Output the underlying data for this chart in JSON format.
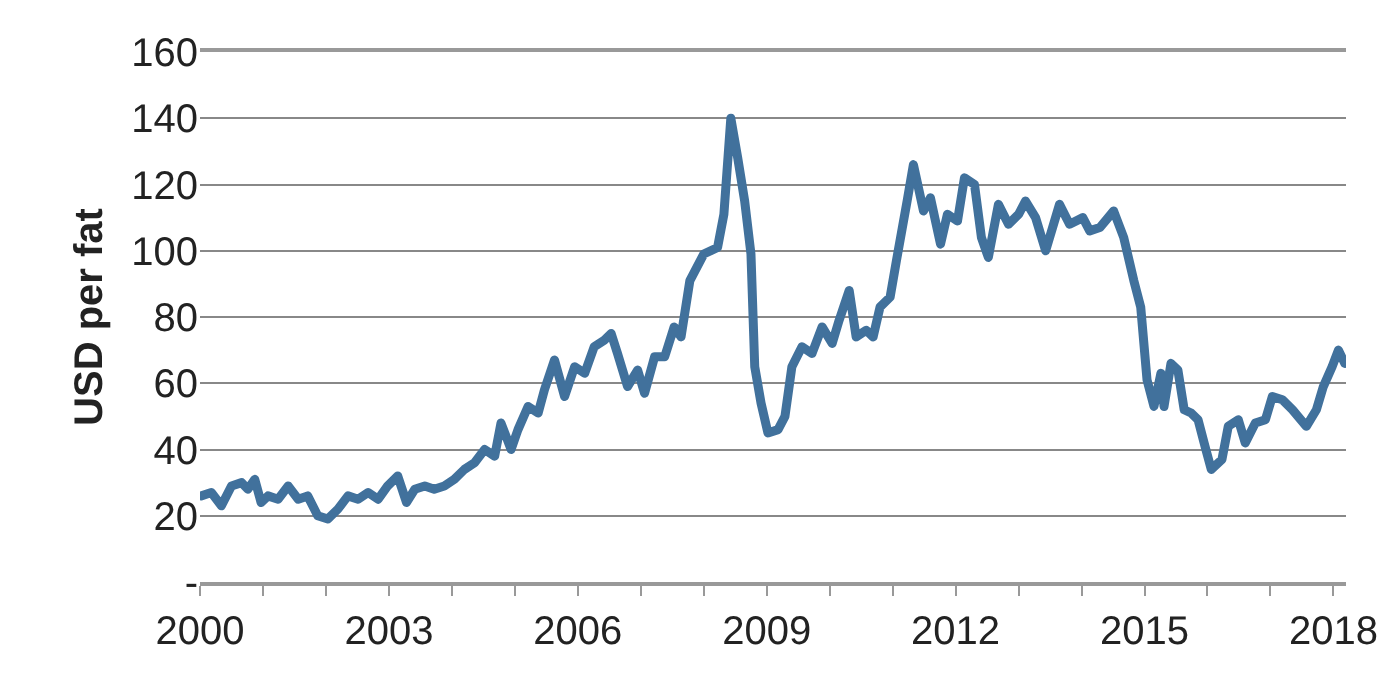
{
  "chart_data": {
    "type": "line",
    "ylabel": "USD per fat",
    "grid": "y",
    "marker": "none",
    "line_style": "solid",
    "xlim": [
      2000,
      2018.2
    ],
    "xticks": [
      2000,
      {
        "value": 2001,
        "label": null
      },
      {
        "value": 2002,
        "label": null
      },
      2003,
      {
        "value": 2004,
        "label": null
      },
      {
        "value": 2005,
        "label": null
      },
      2006,
      {
        "value": 2007,
        "label": null
      },
      {
        "value": 2008,
        "label": null
      },
      2009,
      {
        "value": 2010,
        "label": null
      },
      {
        "value": 2011,
        "label": null
      },
      2012,
      {
        "value": 2013,
        "label": null
      },
      {
        "value": 2014,
        "label": null
      },
      2015,
      {
        "value": 2016,
        "label": null
      },
      {
        "value": 2017,
        "label": null
      },
      2018
    ],
    "ylim": [
      0,
      160
    ],
    "yticks": [
      {
        "value": 0,
        "label": "-"
      },
      20,
      40,
      60,
      80,
      100,
      120,
      140,
      160
    ],
    "x": [
      2000.02,
      2000.18,
      2000.34,
      2000.5,
      2000.66,
      2000.76,
      2000.87,
      2000.97,
      2001.08,
      2001.24,
      2001.4,
      2001.56,
      2001.71,
      2001.87,
      2002.03,
      2002.19,
      2002.35,
      2002.51,
      2002.67,
      2002.83,
      2002.98,
      2003.14,
      2003.28,
      2003.41,
      2003.57,
      2003.72,
      2003.88,
      2004.04,
      2004.2,
      2004.36,
      2004.52,
      2004.68,
      2004.78,
      2004.94,
      2005.05,
      2005.21,
      2005.37,
      2005.47,
      2005.63,
      2005.79,
      2005.95,
      2006.11,
      2006.26,
      2006.42,
      2006.53,
      2006.63,
      2006.79,
      2006.95,
      2007.06,
      2007.22,
      2007.38,
      2007.53,
      2007.64,
      2007.78,
      2008.0,
      2008.22,
      2008.32,
      2008.43,
      2008.54,
      2008.65,
      2008.75,
      2008.81,
      2008.91,
      2009.02,
      2009.18,
      2009.29,
      2009.4,
      2009.56,
      2009.72,
      2009.88,
      2010.04,
      2010.15,
      2010.31,
      2010.42,
      2010.58,
      2010.69,
      2010.8,
      2010.96,
      2011.06,
      2011.23,
      2011.33,
      2011.49,
      2011.6,
      2011.76,
      2011.87,
      2012.03,
      2012.14,
      2012.3,
      2012.41,
      2012.52,
      2012.68,
      2012.84,
      2013.0,
      2013.11,
      2013.27,
      2013.43,
      2013.65,
      2013.81,
      2014.02,
      2014.13,
      2014.29,
      2014.51,
      2014.67,
      2014.83,
      2014.94,
      2015.04,
      2015.15,
      2015.26,
      2015.31,
      2015.42,
      2015.53,
      2015.63,
      2015.74,
      2015.85,
      2015.96,
      2016.06,
      2016.23,
      2016.33,
      2016.49,
      2016.6,
      2016.76,
      2016.92,
      2017.03,
      2017.19,
      2017.35,
      2017.57,
      2017.73,
      2017.84,
      2017.98,
      2018.08,
      2018.18
    ],
    "series": [
      {
        "color": "#41719c",
        "values": [
          26,
          27,
          23,
          29,
          30,
          28,
          31,
          24,
          26,
          25,
          29,
          25,
          26,
          20,
          19,
          22,
          26,
          25,
          27,
          25,
          29,
          32,
          24,
          28,
          29,
          28,
          29,
          31,
          34,
          36,
          40,
          38,
          48,
          40,
          46,
          53,
          51,
          58,
          67,
          56,
          65,
          63,
          71,
          73,
          75,
          69,
          59,
          64,
          57,
          68,
          68,
          77,
          74,
          91,
          99,
          101,
          111,
          140,
          128,
          115,
          99,
          65,
          54,
          45,
          46,
          50,
          65,
          71,
          69,
          77,
          72,
          79,
          88,
          74,
          76,
          74,
          83,
          86,
          97,
          115,
          126,
          112,
          116,
          102,
          111,
          109,
          122,
          120,
          104,
          98,
          114,
          108,
          111,
          115,
          110,
          100,
          114,
          108,
          110,
          106,
          107,
          112,
          104,
          91,
          83,
          61,
          53,
          63,
          53,
          66,
          64,
          52,
          51,
          49,
          41,
          34,
          37,
          47,
          49,
          42,
          48,
          49,
          56,
          55,
          52,
          47,
          52,
          59,
          65,
          70,
          66
        ]
      }
    ]
  }
}
